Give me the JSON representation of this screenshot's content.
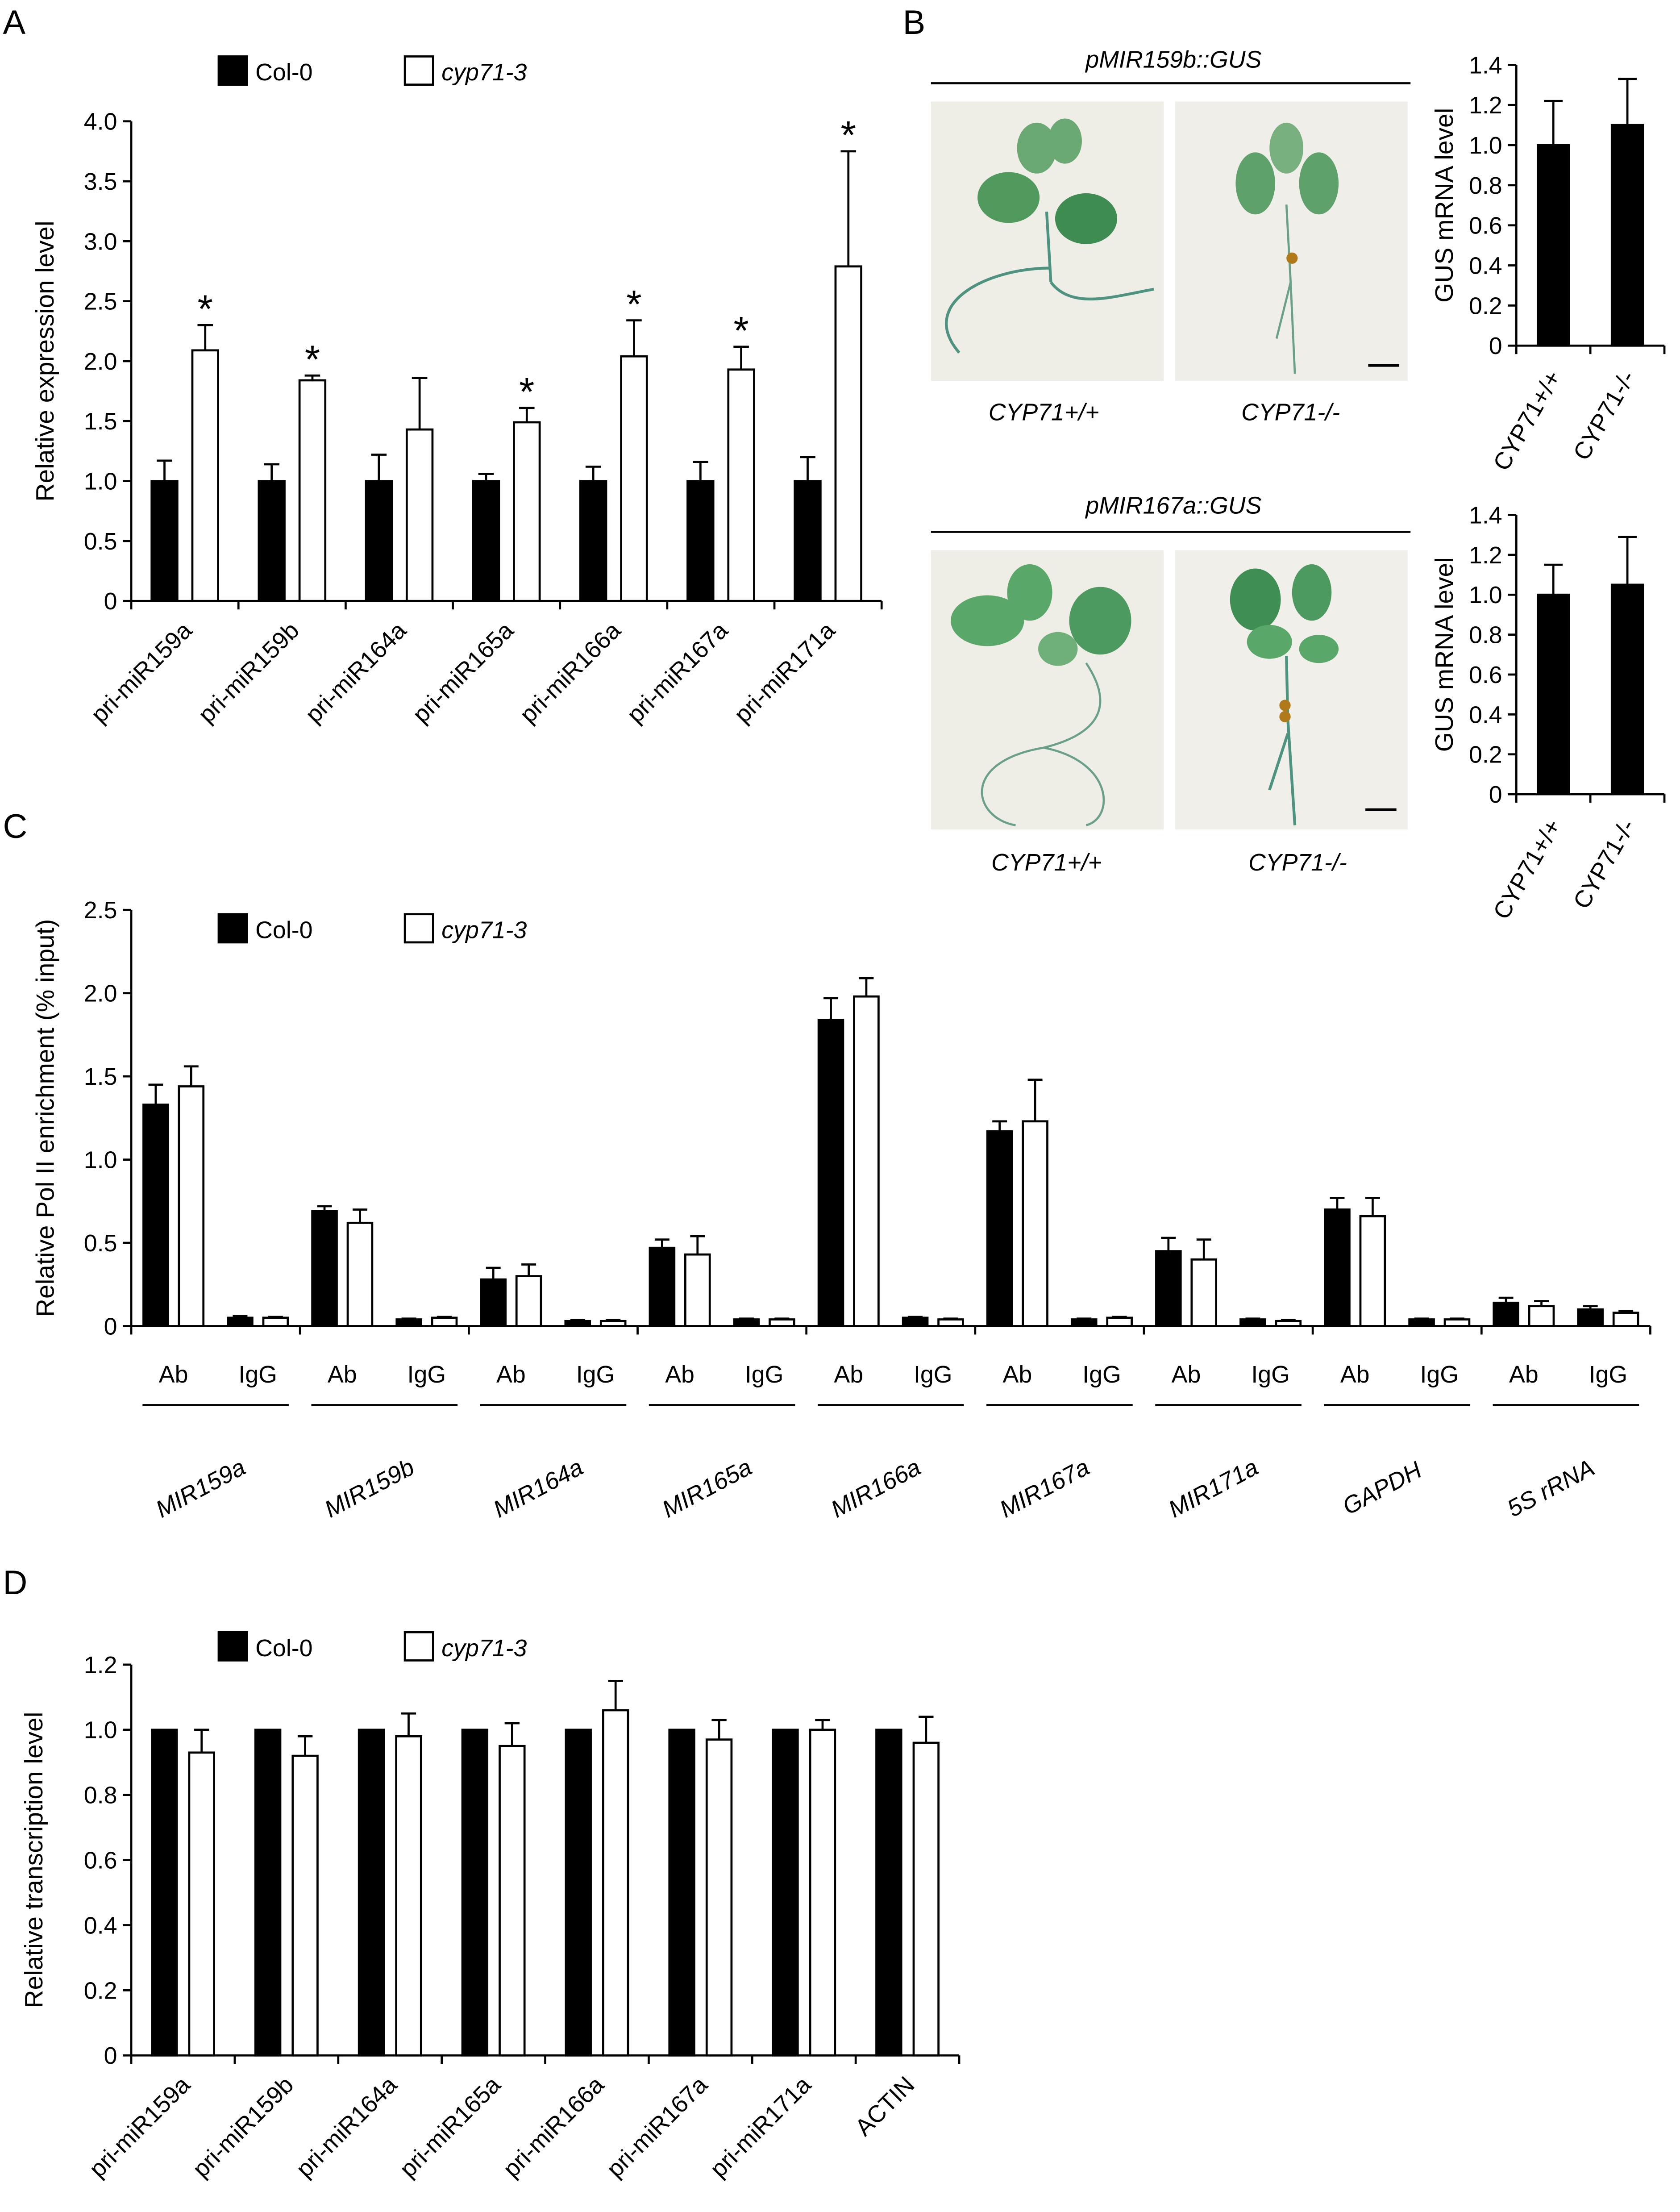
{
  "figure": {
    "panel_labels": [
      "A",
      "B",
      "C",
      "D"
    ],
    "photo_titles": [
      "pMIR159b::GUS",
      "pMIR167a::GUS"
    ],
    "photo_captions": [
      [
        "CYP71+/+",
        "CYP71-/-"
      ],
      [
        "CYP71+/+",
        "CYP71-/-"
      ]
    ]
  },
  "chart_data": [
    {
      "type": "bar",
      "ylabel": "Relative expression level",
      "legend": true,
      "categories": [
        "pri-miR159a",
        "pri-miR159b",
        "pri-miR164a",
        "pri-miR165a",
        "pri-miR166a",
        "pri-miR167a",
        "pri-miR171a"
      ],
      "series": [
        {
          "name": "Col-0",
          "color": "#000000",
          "values": [
            1,
            1,
            1,
            1,
            1,
            1,
            1
          ],
          "errors": [
            0.17,
            0.14,
            0.22,
            0.06,
            0.12,
            0.16,
            0.2
          ]
        },
        {
          "name": "cyp71-3",
          "color": "#ffffff",
          "values": [
            2.09,
            1.84,
            1.43,
            1.49,
            2.04,
            1.93,
            2.79
          ],
          "errors": [
            0.21,
            0.04,
            0.43,
            0.12,
            0.3,
            0.19,
            0.96
          ],
          "significance": [
            "*",
            "*",
            null,
            "*",
            "*",
            "*",
            "*"
          ]
        }
      ],
      "ylim": [
        0,
        4
      ],
      "yticks": [
        0,
        0.5,
        {
          "value": 1,
          "label": "1.0"
        },
        1.5,
        {
          "value": 2,
          "label": "2.0"
        },
        2.5,
        {
          "value": 3,
          "label": "3.0"
        },
        3.5,
        {
          "value": 4,
          "label": "4.0"
        }
      ]
    },
    {
      "type": "bar",
      "ylabel": "GUS mRNA level",
      "categories": [
        "CYP71+/+",
        "CYP71-/-"
      ],
      "series": [
        {
          "color": "#000000",
          "values": [
            1,
            1.1
          ],
          "errors": [
            0.22,
            0.23
          ]
        }
      ],
      "ylim": [
        0,
        1.4
      ],
      "yticks": [
        0,
        0.2,
        0.4,
        0.6,
        0.8,
        {
          "value": 1,
          "label": "1.0"
        },
        1.2,
        1.4
      ]
    },
    {
      "type": "bar",
      "ylabel": "GUS mRNA level",
      "categories": [
        "CYP71+/+",
        "CYP71-/-"
      ],
      "series": [
        {
          "color": "#000000",
          "values": [
            1,
            1.05
          ],
          "errors": [
            0.15,
            0.24
          ]
        }
      ],
      "ylim": [
        0,
        1.4
      ],
      "yticks": [
        0,
        0.2,
        0.4,
        0.6,
        0.8,
        {
          "value": 1,
          "label": "1.0"
        },
        1.2,
        1.4
      ]
    },
    {
      "type": "bar",
      "ylabel": "Relative Pol II enrichment  (% input)",
      "legend": true,
      "categories": [
        "Ab",
        "IgG",
        "Ab",
        "IgG",
        "Ab",
        "IgG",
        "Ab",
        "IgG",
        "Ab",
        "IgG",
        "Ab",
        "IgG",
        "Ab",
        "IgG",
        "Ab",
        "IgG",
        "Ab",
        "IgG"
      ],
      "groups": [
        "MIR159a",
        "MIR159b",
        "MIR164a",
        "MIR165a",
        "MIR166a",
        "MIR167a",
        "MIR171a",
        "GAPDH",
        "5S rRNA"
      ],
      "series": [
        {
          "name": "Col-0",
          "color": "#000000",
          "values": [
            1.33,
            0.05,
            0.69,
            0.04,
            0.28,
            0.03,
            0.47,
            0.04,
            1.84,
            0.05,
            1.17,
            0.04,
            0.45,
            0.04,
            0.7,
            0.04,
            0.14,
            0.1
          ],
          "errors": [
            0.12,
            0.01,
            0.03,
            0.005,
            0.07,
            0.005,
            0.05,
            0.005,
            0.13,
            0.005,
            0.06,
            0.005,
            0.08,
            0.005,
            0.07,
            0.005,
            0.03,
            0.02
          ]
        },
        {
          "name": "cyp71-3",
          "color": "#ffffff",
          "values": [
            1.44,
            0.05,
            0.62,
            0.05,
            0.3,
            0.03,
            0.43,
            0.04,
            1.98,
            0.04,
            1.23,
            0.05,
            0.4,
            0.03,
            0.66,
            0.04,
            0.12,
            0.08
          ],
          "errors": [
            0.12,
            0.005,
            0.08,
            0.005,
            0.07,
            0.005,
            0.11,
            0.005,
            0.11,
            0.005,
            0.25,
            0.005,
            0.12,
            0.005,
            0.11,
            0.005,
            0.03,
            0.01
          ]
        }
      ],
      "ylim": [
        0,
        2.5
      ],
      "yticks": [
        0,
        0.5,
        {
          "value": 1,
          "label": "1.0"
        },
        1.5,
        {
          "value": 2,
          "label": "2.0"
        },
        2.5
      ]
    },
    {
      "type": "bar",
      "ylabel": "Relative transcription level",
      "legend": true,
      "categories": [
        "pri-miR159a",
        "pri-miR159b",
        "pri-miR164a",
        "pri-miR165a",
        "pri-miR166a",
        "pri-miR167a",
        "pri-miR171a",
        "ACTIN"
      ],
      "series": [
        {
          "name": "Col-0",
          "color": "#000000",
          "values": [
            1,
            1,
            1,
            1,
            1,
            1,
            1,
            1
          ]
        },
        {
          "name": "cyp71-3",
          "color": "#ffffff",
          "values": [
            0.93,
            0.92,
            0.98,
            0.95,
            1.06,
            0.97,
            1,
            0.96
          ],
          "errors": [
            0.07,
            0.06,
            0.07,
            0.07,
            0.09,
            0.06,
            0.03,
            0.08
          ]
        }
      ],
      "ylim": [
        0,
        1.2
      ],
      "yticks": [
        0,
        0.2,
        0.4,
        0.6,
        0.8,
        {
          "value": 1,
          "label": "1.0"
        },
        1.2
      ]
    }
  ]
}
